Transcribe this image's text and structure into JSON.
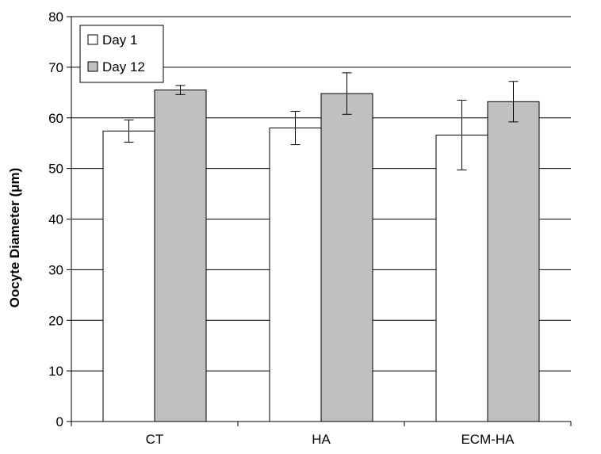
{
  "chart_data": {
    "type": "bar",
    "title": "",
    "xlabel": "",
    "ylabel": "Oocyte Diameter (μm)",
    "categories": [
      "CT",
      "HA",
      "ECM-HA"
    ],
    "series": [
      {
        "name": "Day 1",
        "color": "#ffffff",
        "values": [
          57.4,
          58.0,
          56.6
        ],
        "error": [
          2.2,
          3.3,
          6.9
        ]
      },
      {
        "name": "Day 12",
        "color": "#c0c0c0",
        "values": [
          65.5,
          64.8,
          63.2
        ],
        "error": [
          0.9,
          4.1,
          4.0
        ]
      }
    ],
    "ylim": [
      0,
      80
    ],
    "yticks": [
      0,
      10,
      20,
      30,
      40,
      50,
      60,
      70,
      80
    ],
    "grid": true,
    "legend": "top-left"
  }
}
